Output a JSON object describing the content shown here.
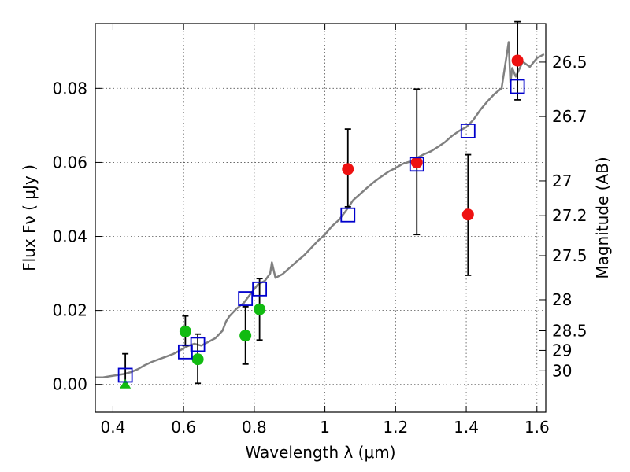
{
  "chart_data": {
    "type": "scatter",
    "xlabel": "Wavelength  λ (μm)",
    "ylabel": "Flux  Fν  ( μJy )",
    "y2label": "Magnitude (AB)",
    "xlim": [
      0.35,
      1.625
    ],
    "ylim": [
      -0.0075,
      0.0975
    ],
    "grid": true,
    "x_ticks": [
      0.4,
      0.6,
      0.8,
      1.0,
      1.2,
      1.4,
      1.6
    ],
    "x_tick_labels": [
      "0.4",
      "0.6",
      "0.8",
      "1",
      "1.2",
      "1.4",
      "1.6"
    ],
    "y_ticks": [
      0.0,
      0.02,
      0.04,
      0.06,
      0.08
    ],
    "y_tick_labels": [
      "0.00",
      "0.02",
      "0.04",
      "0.06",
      "0.08"
    ],
    "y2_ticks": [
      {
        "flux": 0.0871,
        "label": "26.5"
      },
      {
        "flux": 0.0724,
        "label": "26.7"
      },
      {
        "flux": 0.055,
        "label": "27"
      },
      {
        "flux": 0.0456,
        "label": "27.2"
      },
      {
        "flux": 0.0348,
        "label": "27.5"
      },
      {
        "flux": 0.0229,
        "label": "28"
      },
      {
        "flux": 0.0145,
        "label": "28.5"
      },
      {
        "flux": 0.0092,
        "label": "29"
      },
      {
        "flux": 0.0037,
        "label": "30"
      }
    ],
    "colors": {
      "model": "#808080",
      "model_photometry": "#0000cc",
      "red": "#ee1111",
      "green": "#11bb11",
      "errorbar": "#000000",
      "grid": "#555555"
    },
    "series": [
      {
        "kind": "model_spectrum",
        "x": [
          0.35,
          0.37,
          0.39,
          0.41,
          0.43,
          0.45,
          0.47,
          0.49,
          0.51,
          0.53,
          0.55,
          0.57,
          0.59,
          0.61,
          0.63,
          0.65,
          0.67,
          0.69,
          0.71,
          0.72,
          0.73,
          0.75,
          0.77,
          0.79,
          0.81,
          0.83,
          0.845,
          0.85,
          0.86,
          0.88,
          0.9,
          0.92,
          0.94,
          0.96,
          0.98,
          1.0,
          1.02,
          1.04,
          1.06,
          1.08,
          1.1,
          1.12,
          1.14,
          1.16,
          1.18,
          1.2,
          1.22,
          1.24,
          1.26,
          1.28,
          1.3,
          1.32,
          1.34,
          1.36,
          1.38,
          1.4,
          1.42,
          1.44,
          1.46,
          1.48,
          1.5,
          1.51,
          1.52,
          1.525,
          1.53,
          1.54,
          1.56,
          1.58,
          1.6,
          1.62
        ],
        "y": [
          0.0019,
          0.0019,
          0.0022,
          0.0025,
          0.0028,
          0.0033,
          0.0041,
          0.0052,
          0.0061,
          0.0068,
          0.0075,
          0.0082,
          0.0092,
          0.0103,
          0.011,
          0.0105,
          0.0115,
          0.0125,
          0.0145,
          0.017,
          0.0185,
          0.0205,
          0.022,
          0.0245,
          0.027,
          0.028,
          0.03,
          0.033,
          0.0288,
          0.0298,
          0.0315,
          0.0332,
          0.0348,
          0.0368,
          0.0388,
          0.0405,
          0.0428,
          0.0445,
          0.047,
          0.0498,
          0.0515,
          0.0532,
          0.0548,
          0.0562,
          0.0575,
          0.0585,
          0.0596,
          0.0602,
          0.0612,
          0.0622,
          0.063,
          0.0642,
          0.0655,
          0.0672,
          0.0685,
          0.0695,
          0.0715,
          0.0742,
          0.0765,
          0.0785,
          0.08,
          0.0862,
          0.0925,
          0.0815,
          0.0855,
          0.0832,
          0.0872,
          0.0858,
          0.0882,
          0.0892
        ]
      },
      {
        "kind": "model_photometry",
        "marker": "open-square",
        "x": [
          0.435,
          0.605,
          0.64,
          0.775,
          0.815,
          1.065,
          1.26,
          1.405,
          1.545
        ],
        "y": [
          0.0025,
          0.0088,
          0.0108,
          0.0232,
          0.0258,
          0.0458,
          0.0595,
          0.0685,
          0.0805
        ]
      },
      {
        "kind": "observed_red",
        "marker": "filled-circle",
        "x": [
          1.065,
          1.26,
          1.405,
          1.545
        ],
        "y": [
          0.0582,
          0.06,
          0.0459,
          0.0875
        ],
        "yerr_low": [
          0.0102,
          0.0195,
          0.0164,
          0.0106
        ],
        "yerr_high": [
          0.0108,
          0.0198,
          0.0162,
          0.0105
        ]
      },
      {
        "kind": "observed_green",
        "marker": "filled-circle",
        "x": [
          0.605,
          0.64,
          0.775,
          0.815
        ],
        "y": [
          0.0143,
          0.0068,
          0.0132,
          0.0203
        ],
        "yerr_low": [
          0.0038,
          0.0065,
          0.0077,
          0.0083
        ],
        "yerr_high": [
          0.0042,
          0.0068,
          0.0078,
          0.0083
        ]
      },
      {
        "kind": "upper_limit_green",
        "marker": "triangle",
        "x": [
          0.435
        ],
        "y": [
          0.0
        ],
        "yerr_high": [
          0.0083
        ]
      }
    ]
  }
}
